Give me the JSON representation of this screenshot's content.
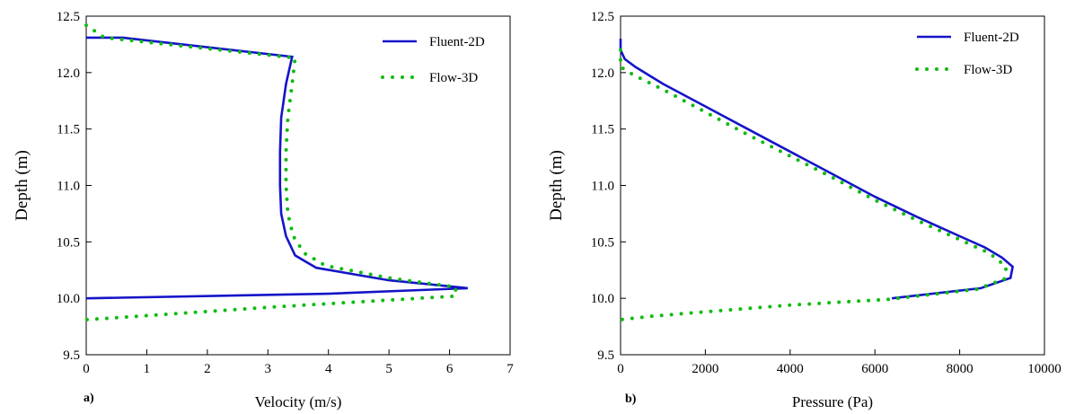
{
  "chart_data": [
    {
      "type": "line",
      "panel_label": "a)",
      "xlabel": "Velocity (m/s)",
      "ylabel": "Depth (m)",
      "xlim": [
        0,
        7
      ],
      "ylim": [
        9.5,
        12.5
      ],
      "xticks": [
        "0",
        "1",
        "2",
        "3",
        "4",
        "5",
        "6",
        "7"
      ],
      "yticks": [
        "9.5",
        "10.0",
        "10.5",
        "11.0",
        "11.5",
        "12.0",
        "12.5"
      ],
      "grid": false,
      "legend_position": "top-right",
      "series": [
        {
          "name": "Fluent-2D",
          "style": "solid",
          "color": "#1414c8",
          "points": [
            [
              0.0,
              12.31
            ],
            [
              0.6,
              12.31
            ],
            [
              3.4,
              12.14
            ],
            [
              3.3,
              11.9
            ],
            [
              3.22,
              11.6
            ],
            [
              3.2,
              11.3
            ],
            [
              3.2,
              11.0
            ],
            [
              3.22,
              10.75
            ],
            [
              3.3,
              10.55
            ],
            [
              3.45,
              10.38
            ],
            [
              3.8,
              10.27
            ],
            [
              5.0,
              10.16
            ],
            [
              6.3,
              10.09
            ],
            [
              4.0,
              10.04
            ],
            [
              0.0,
              10.0
            ]
          ]
        },
        {
          "name": "Flow-3D",
          "style": "dotted",
          "color": "#11bb11",
          "points": [
            [
              0.0,
              12.42
            ],
            [
              0.3,
              12.31
            ],
            [
              3.45,
              12.13
            ],
            [
              3.4,
              11.9
            ],
            [
              3.33,
              11.6
            ],
            [
              3.3,
              11.3
            ],
            [
              3.3,
              11.0
            ],
            [
              3.33,
              10.75
            ],
            [
              3.42,
              10.55
            ],
            [
              3.6,
              10.4
            ],
            [
              3.95,
              10.29
            ],
            [
              5.0,
              10.18
            ],
            [
              6.1,
              10.1
            ],
            [
              6.1,
              10.02
            ],
            [
              3.0,
              9.92
            ],
            [
              0.0,
              9.81
            ]
          ]
        }
      ]
    },
    {
      "type": "line",
      "panel_label": "b)",
      "xlabel": "Pressure (Pa)",
      "ylabel": "Depth (m)",
      "xlim": [
        0,
        10000
      ],
      "ylim": [
        9.5,
        12.5
      ],
      "xticks": [
        "0",
        "2000",
        "4000",
        "6000",
        "8000",
        "10000"
      ],
      "yticks": [
        "9.5",
        "10.0",
        "10.5",
        "11.0",
        "11.5",
        "12.0",
        "12.5"
      ],
      "grid": false,
      "legend_position": "top-right",
      "series": [
        {
          "name": "Fluent-2D",
          "style": "solid",
          "color": "#1414c8",
          "points": [
            [
              0,
              12.3
            ],
            [
              0,
              12.2
            ],
            [
              100,
              12.12
            ],
            [
              350,
              12.05
            ],
            [
              1000,
              11.9
            ],
            [
              2000,
              11.7
            ],
            [
              3000,
              11.5
            ],
            [
              4000,
              11.3
            ],
            [
              5000,
              11.1
            ],
            [
              6000,
              10.9
            ],
            [
              7000,
              10.72
            ],
            [
              8000,
              10.55
            ],
            [
              8600,
              10.45
            ],
            [
              9000,
              10.36
            ],
            [
              9250,
              10.28
            ],
            [
              9200,
              10.18
            ],
            [
              8500,
              10.09
            ],
            [
              6400,
              10.0
            ]
          ]
        },
        {
          "name": "Flow-3D",
          "style": "dotted",
          "color": "#11bb11",
          "points": [
            [
              0,
              12.2
            ],
            [
              0,
              12.05
            ],
            [
              300,
              11.98
            ],
            [
              1000,
              11.85
            ],
            [
              2000,
              11.65
            ],
            [
              3000,
              11.45
            ],
            [
              4000,
              11.26
            ],
            [
              5000,
              11.07
            ],
            [
              6000,
              10.87
            ],
            [
              7000,
              10.69
            ],
            [
              8000,
              10.52
            ],
            [
              8700,
              10.4
            ],
            [
              9100,
              10.28
            ],
            [
              9050,
              10.17
            ],
            [
              8400,
              10.08
            ],
            [
              6300,
              9.99
            ],
            [
              4000,
              9.94
            ],
            [
              2000,
              9.88
            ],
            [
              700,
              9.84
            ],
            [
              0,
              9.81
            ]
          ]
        }
      ]
    }
  ]
}
